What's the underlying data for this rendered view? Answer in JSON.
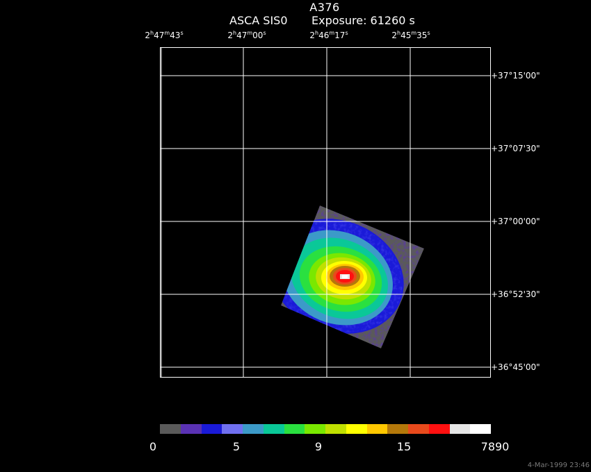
{
  "header": {
    "object": "A376",
    "instrument": "ASCA SIS0",
    "exposure": "Exposure: 61260 s"
  },
  "ra_labels": [
    {
      "h": "2",
      "m": "47",
      "s": "43"
    },
    {
      "h": "2",
      "m": "47",
      "s": "00"
    },
    {
      "h": "2",
      "m": "46",
      "s": "17"
    },
    {
      "h": "2",
      "m": "45",
      "s": "35"
    }
  ],
  "dec_labels": [
    "+37°15'00\"",
    "+37°07'30\"",
    "+37°00'00\"",
    "+36°52'30\"",
    "+36°45'00\""
  ],
  "colorbar": {
    "colors": [
      "#5a5a5a",
      "#5a32b4",
      "#1a1ad8",
      "#7070f0",
      "#3c9ac8",
      "#0ac898",
      "#2ae040",
      "#7ae800",
      "#c0e000",
      "#ffff00",
      "#ffc800",
      "#b4780a",
      "#e84a1c",
      "#ff1010",
      "#e6e6e6",
      "#ffffff"
    ],
    "labels": [
      "0",
      "5",
      "9",
      "15",
      "7890"
    ]
  },
  "timestamp": "4-Mar-1999 23:46"
}
